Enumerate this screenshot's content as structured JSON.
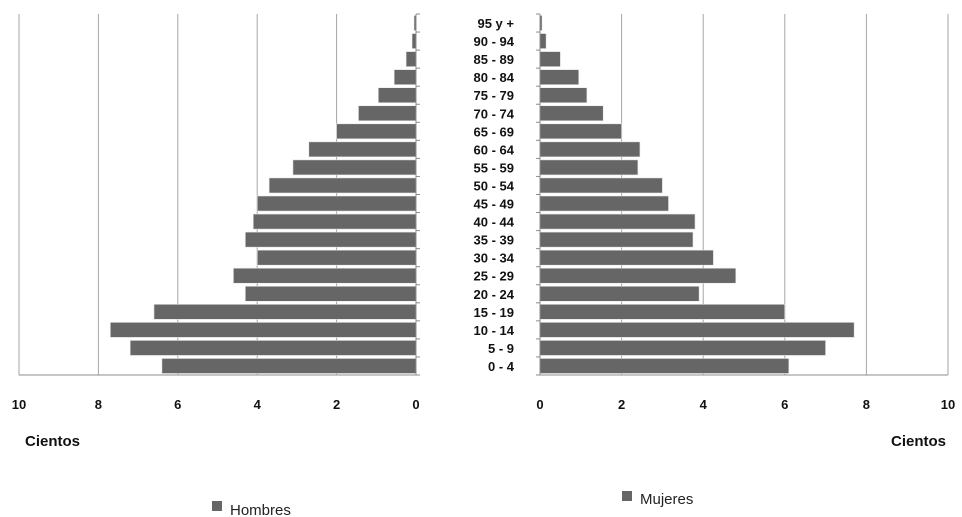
{
  "chart_data": [
    {
      "type": "bar",
      "orientation": "horizontal",
      "side": "left",
      "categories": [
        "0-4",
        "5-9",
        "10-14",
        "15-19",
        "20-24",
        "25-29",
        "30-34",
        "35-39",
        "40-44",
        "45-49",
        "50-54",
        "55-59",
        "60-64",
        "65-69",
        "70-74",
        "75-79",
        "80-84",
        "85-89",
        "90-94",
        "95 y +"
      ],
      "series": [
        {
          "name": "Hombres",
          "values": [
            6.4,
            7.2,
            7.7,
            6.6,
            4.3,
            4.6,
            4.0,
            4.3,
            4.1,
            4.0,
            3.7,
            3.1,
            2.7,
            2.0,
            1.45,
            0.95,
            0.55,
            0.25,
            0.1,
            0.05
          ]
        }
      ],
      "xlabel": "Cientos",
      "xlim": [
        0,
        10
      ],
      "x_reversed": true,
      "xticks": [
        "10",
        "8",
        "6",
        "4",
        "2",
        "0"
      ],
      "grid": true,
      "legend": "bottom"
    },
    {
      "type": "bar",
      "orientation": "horizontal",
      "side": "right",
      "categories": [
        "0-4",
        "5-9",
        "10-14",
        "15-19",
        "20-24",
        "25-29",
        "30-34",
        "35-39",
        "40-44",
        "45-49",
        "50-54",
        "55-59",
        "60-64",
        "65-69",
        "70-74",
        "75-79",
        "80-84",
        "85-89",
        "90-94",
        "95 y +"
      ],
      "series": [
        {
          "name": "Mujeres",
          "values": [
            6.1,
            7.0,
            7.7,
            6.0,
            3.9,
            4.8,
            4.25,
            3.75,
            3.8,
            3.15,
            3.0,
            2.4,
            2.45,
            2.0,
            1.55,
            1.15,
            0.95,
            0.5,
            0.15,
            0.05
          ]
        }
      ],
      "xlabel": "Cientos",
      "xlim": [
        0,
        10
      ],
      "xticks": [
        "0",
        "2",
        "4",
        "6",
        "8",
        "10"
      ],
      "grid": true,
      "legend": "bottom"
    }
  ],
  "age_labels": [
    "0 - 4",
    "5 - 9",
    "10 - 14",
    "15 - 19",
    "20 - 24",
    "25 - 29",
    "30 - 34",
    "35 - 39",
    "40 - 44",
    "45 - 49",
    "50 - 54",
    "55 - 59",
    "60 - 64",
    "65 - 69",
    "70 - 74",
    "75 - 79",
    "80 - 84",
    "85 - 89",
    "90 - 94",
    "95 y +"
  ],
  "left_axis_unit": "Cientos",
  "right_axis_unit": "Cientos",
  "legend": {
    "hombres": "Hombres",
    "mujeres": "Mujeres"
  },
  "colors": {
    "bar": "#666666",
    "bar_stroke": "#e8e8e8",
    "grid": "#a6a6a6",
    "axis": "#8c8c8c"
  }
}
